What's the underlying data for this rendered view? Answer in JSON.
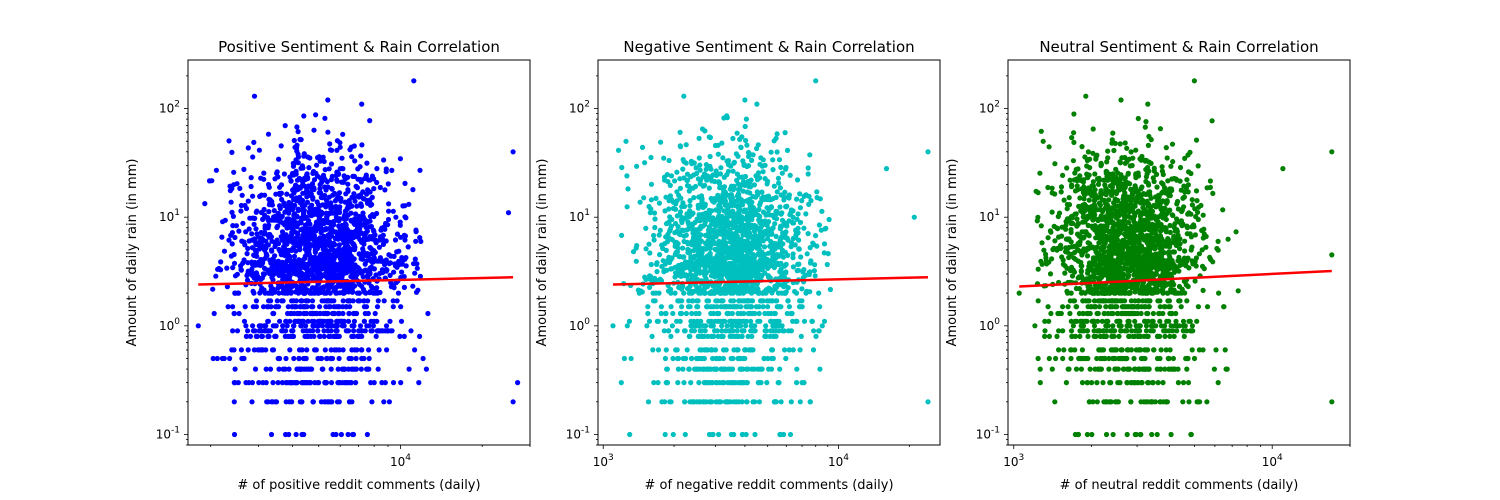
{
  "chart_data": [
    {
      "type": "scatter",
      "title": "Positive Sentiment & Rain Correlation",
      "xlabel": "# of positive reddit comments (daily)",
      "ylabel": "Amount of daily rain (in mm)",
      "x_scale": "log",
      "y_scale": "log",
      "xlim": [
        1650,
        30000
      ],
      "ylim": [
        0.08,
        280
      ],
      "x_ticks": [
        {
          "value": 10000,
          "label": "10^4"
        }
      ],
      "y_ticks": [
        {
          "value": 0.1,
          "label": "10^-1"
        },
        {
          "value": 1,
          "label": "10^0"
        },
        {
          "value": 10,
          "label": "10^1"
        },
        {
          "value": 100,
          "label": "10^2"
        }
      ],
      "point_color": "#0000ff",
      "trend_color": "#ff0000",
      "trend": {
        "x": [
          1800,
          26000
        ],
        "y": [
          2.4,
          2.8
        ]
      },
      "sample_points": {
        "x": [
          1800,
          2100,
          2900,
          3350,
          5400,
          7200,
          11200,
          26000,
          26000,
          25000,
          27000
        ],
        "y": [
          1.0,
          27,
          130,
          0.1,
          120,
          110,
          180,
          0.2,
          40,
          11,
          0.3
        ]
      },
      "cloud": {
        "x_range": [
          1900,
          13000
        ],
        "x_center": 5000,
        "y_center": 6,
        "y_spread": 1.0
      }
    },
    {
      "type": "scatter",
      "title": "Negative Sentiment & Rain Correlation",
      "xlabel": "# of negative reddit comments (daily)",
      "ylabel": "Amount of daily rain (in mm)",
      "x_scale": "log",
      "y_scale": "log",
      "xlim": [
        950,
        27000
      ],
      "ylim": [
        0.08,
        280
      ],
      "x_ticks": [
        {
          "value": 1000,
          "label": "10^3"
        },
        {
          "value": 10000,
          "label": "10^4"
        }
      ],
      "y_ticks": [
        {
          "value": 0.1,
          "label": "10^-1"
        },
        {
          "value": 1,
          "label": "10^0"
        },
        {
          "value": 10,
          "label": "10^1"
        },
        {
          "value": 100,
          "label": "10^2"
        }
      ],
      "point_color": "#00bfbf",
      "trend_color": "#ff0000",
      "trend": {
        "x": [
          1100,
          24000
        ],
        "y": [
          2.4,
          2.8
        ]
      },
      "sample_points": {
        "x": [
          1100,
          1250,
          2200,
          4000,
          4500,
          8000,
          24000,
          24000,
          21000,
          16000
        ],
        "y": [
          1.0,
          50,
          130,
          120,
          110,
          180,
          0.2,
          40,
          10,
          28
        ]
      },
      "cloud": {
        "x_range": [
          1150,
          9500
        ],
        "x_center": 3500,
        "y_center": 6,
        "y_spread": 1.0
      }
    },
    {
      "type": "scatter",
      "title": "Neutral Sentiment & Rain Correlation",
      "xlabel": "# of neutral reddit comments (daily)",
      "ylabel": "Amount of daily rain (in mm)",
      "x_scale": "log",
      "y_scale": "log",
      "xlim": [
        950,
        20000
      ],
      "ylim": [
        0.08,
        280
      ],
      "x_ticks": [
        {
          "value": 1000,
          "label": "10^3"
        },
        {
          "value": 10000,
          "label": "10^4"
        }
      ],
      "y_ticks": [
        {
          "value": 0.1,
          "label": "10^-1"
        },
        {
          "value": 1,
          "label": "10^0"
        },
        {
          "value": 10,
          "label": "10^1"
        },
        {
          "value": 100,
          "label": "10^2"
        }
      ],
      "point_color": "#008000",
      "trend_color": "#ff0000",
      "trend": {
        "x": [
          1050,
          17000
        ],
        "y": [
          2.3,
          3.2
        ]
      },
      "sample_points": {
        "x": [
          1050,
          1300,
          1900,
          2600,
          3300,
          5000,
          17000,
          17000,
          17000,
          11000
        ],
        "y": [
          2.0,
          50,
          130,
          120,
          110,
          180,
          0.2,
          40,
          4.5,
          28
        ]
      },
      "cloud": {
        "x_range": [
          1200,
          7500
        ],
        "x_center": 2700,
        "y_center": 6,
        "y_spread": 1.0
      }
    }
  ]
}
